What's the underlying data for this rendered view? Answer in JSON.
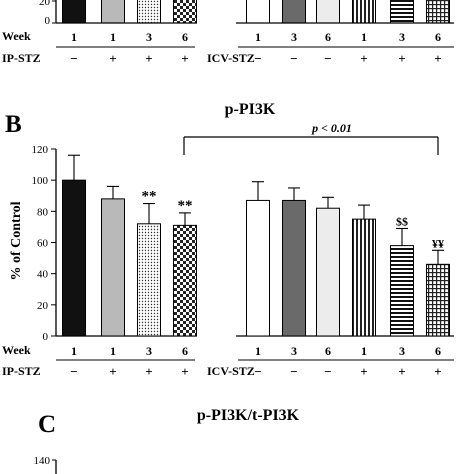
{
  "panel_a_partial": {
    "y_tick": "20",
    "y_tick_zero": "0",
    "week_label": "Week",
    "ip_label": "IP-STZ",
    "icv_label": "ICV-STZ",
    "weeks": [
      "1",
      "1",
      "3",
      "6",
      "1",
      "3",
      "6",
      "1",
      "3",
      "6"
    ],
    "ip_signs": [
      "−",
      "+",
      "+",
      "+"
    ],
    "icv_signs": [
      "−",
      "−",
      "−",
      "+",
      "+",
      "+"
    ]
  },
  "panel_b": {
    "letter": "B",
    "title": "p-PI3K",
    "ylabel": "% of Control",
    "y_ticks": [
      "0",
      "20",
      "40",
      "60",
      "80",
      "100",
      "120"
    ],
    "p_annotation": "p < 0.01",
    "week_label": "Week",
    "ip_label": "IP-STZ",
    "icv_label": "ICV-STZ",
    "weeks": [
      "1",
      "1",
      "3",
      "6",
      "1",
      "3",
      "6",
      "1",
      "3",
      "6"
    ],
    "ip_signs": [
      "−",
      "+",
      "+",
      "+"
    ],
    "icv_signs": [
      "−",
      "−",
      "−",
      "+",
      "+",
      "+"
    ]
  },
  "panel_c_partial": {
    "letter": "C",
    "title": "p-PI3K/t-PI3K",
    "y_tick": "140"
  },
  "chart_data": {
    "type": "bar",
    "title": "p-PI3K",
    "xlabel": "",
    "ylabel": "% of Control",
    "ylim": [
      0,
      120
    ],
    "grid": false,
    "categories": [
      "IP-STZ W1 −",
      "IP-STZ W1 +",
      "IP-STZ W3 +",
      "IP-STZ W6 +",
      "ICV-STZ W1 −",
      "ICV-STZ W3 −",
      "ICV-STZ W6 −",
      "ICV-STZ W1 +",
      "ICV-STZ W3 +",
      "ICV-STZ W6 +"
    ],
    "values": [
      100,
      88,
      72,
      71,
      87,
      87,
      82,
      75,
      58,
      46
    ],
    "errors": [
      16,
      8,
      13,
      8,
      12,
      8,
      7,
      9,
      11,
      9
    ],
    "significance": [
      "",
      "",
      "**",
      "**",
      "",
      "",
      "",
      "",
      "$$",
      "¥¥"
    ],
    "fills": [
      "#111111",
      "#b9b9b9",
      "dots",
      "check",
      "#ffffff",
      "#6a6a6a",
      "#ececec",
      "vlines",
      "hlines",
      "grid"
    ],
    "annotations": [
      "p < 0.01"
    ]
  }
}
